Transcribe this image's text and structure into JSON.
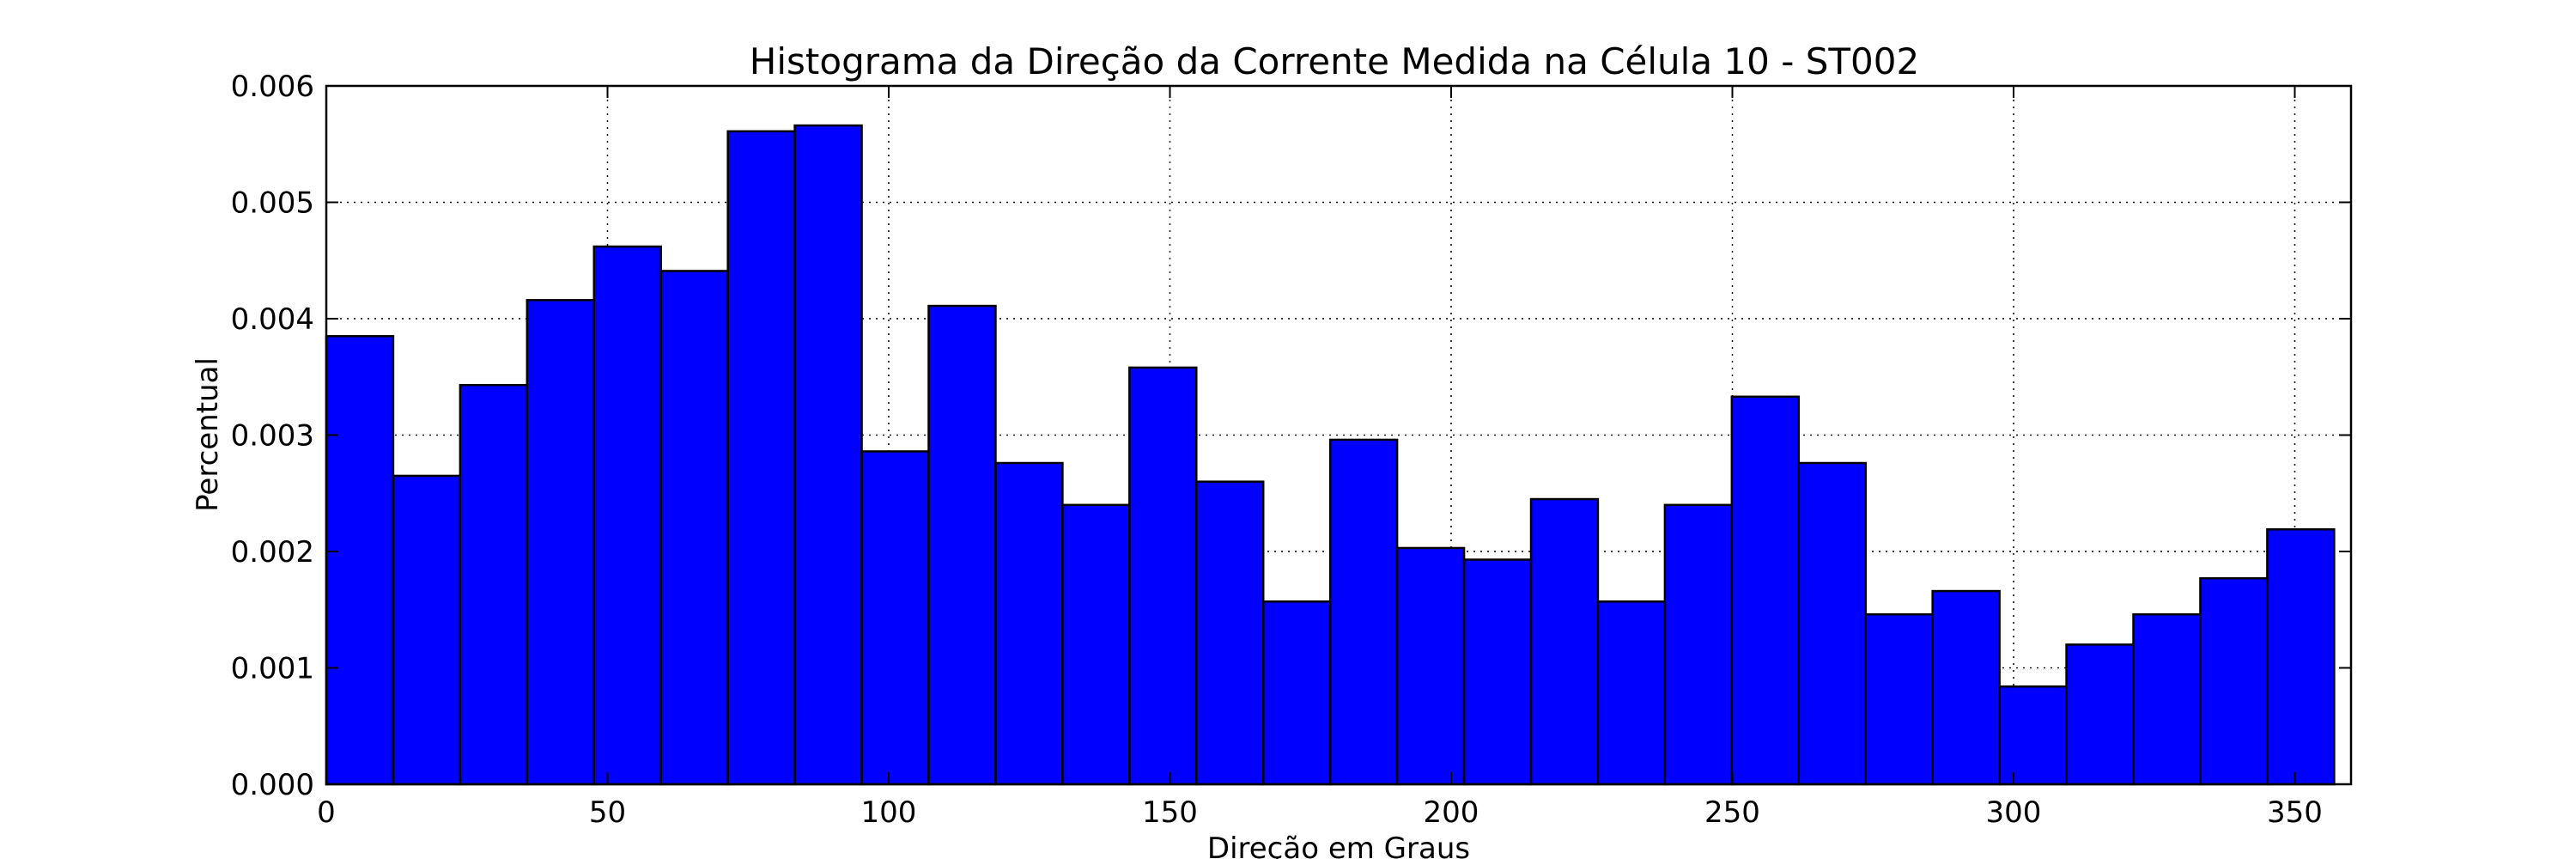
{
  "chart_data": {
    "type": "bar",
    "title": "Histograma da Direção da Corrente Medida na Célula 10 - ST002",
    "xlabel": "Direção em Graus",
    "ylabel": "Percentual",
    "xlim": [
      0,
      360
    ],
    "ylim": [
      0,
      0.006
    ],
    "x_ticks": [
      0,
      50,
      100,
      150,
      200,
      250,
      300,
      350
    ],
    "x_tick_labels": [
      "0",
      "50",
      "100",
      "150",
      "200",
      "250",
      "300",
      "350"
    ],
    "y_ticks": [
      0,
      0.001,
      0.002,
      0.003,
      0.004,
      0.005,
      0.006
    ],
    "y_tick_labels": [
      "0.000",
      "0.001",
      "0.002",
      "0.003",
      "0.004",
      "0.005",
      "0.006"
    ],
    "grid": true,
    "bar_color": "#0000ff",
    "bins": [
      {
        "x0": 0.0,
        "x1": 11.9,
        "value": 0.00385
      },
      {
        "x0": 11.9,
        "x1": 23.8,
        "value": 0.00265
      },
      {
        "x0": 23.8,
        "x1": 35.7,
        "value": 0.00343
      },
      {
        "x0": 35.7,
        "x1": 47.6,
        "value": 0.00416
      },
      {
        "x0": 47.6,
        "x1": 59.5,
        "value": 0.00462
      },
      {
        "x0": 59.5,
        "x1": 71.4,
        "value": 0.00441
      },
      {
        "x0": 71.4,
        "x1": 83.3,
        "value": 0.00561
      },
      {
        "x0": 83.3,
        "x1": 95.2,
        "value": 0.00566
      },
      {
        "x0": 95.2,
        "x1": 107.1,
        "value": 0.00286
      },
      {
        "x0": 107.1,
        "x1": 119.0,
        "value": 0.00411
      },
      {
        "x0": 119.0,
        "x1": 130.9,
        "value": 0.00276
      },
      {
        "x0": 130.9,
        "x1": 142.8,
        "value": 0.0024
      },
      {
        "x0": 142.8,
        "x1": 154.7,
        "value": 0.00358
      },
      {
        "x0": 154.7,
        "x1": 166.6,
        "value": 0.0026
      },
      {
        "x0": 166.6,
        "x1": 178.5,
        "value": 0.00157
      },
      {
        "x0": 178.5,
        "x1": 190.4,
        "value": 0.00296
      },
      {
        "x0": 190.4,
        "x1": 202.3,
        "value": 0.00203
      },
      {
        "x0": 202.3,
        "x1": 214.2,
        "value": 0.00193
      },
      {
        "x0": 214.2,
        "x1": 226.1,
        "value": 0.00245
      },
      {
        "x0": 226.1,
        "x1": 238.0,
        "value": 0.00157
      },
      {
        "x0": 238.0,
        "x1": 249.9,
        "value": 0.0024
      },
      {
        "x0": 249.9,
        "x1": 261.8,
        "value": 0.00333
      },
      {
        "x0": 261.8,
        "x1": 273.7,
        "value": 0.00276
      },
      {
        "x0": 273.7,
        "x1": 285.6,
        "value": 0.00146
      },
      {
        "x0": 285.6,
        "x1": 297.5,
        "value": 0.00166
      },
      {
        "x0": 297.5,
        "x1": 309.4,
        "value": 0.00084
      },
      {
        "x0": 309.4,
        "x1": 321.3,
        "value": 0.0012
      },
      {
        "x0": 321.3,
        "x1": 333.2,
        "value": 0.00146
      },
      {
        "x0": 333.2,
        "x1": 345.1,
        "value": 0.00177
      },
      {
        "x0": 345.1,
        "x1": 357.0,
        "value": 0.00219
      }
    ]
  }
}
